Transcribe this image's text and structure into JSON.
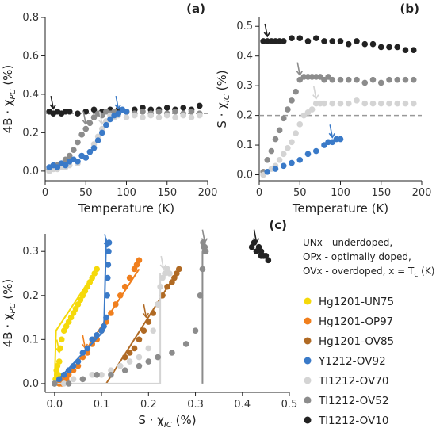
{
  "notes": [
    "UNx - underdoped,",
    "OPx - optimally doped,",
    "OVx - overdoped,  x = T",
    "c",
    " (K)"
  ],
  "chart_data": [
    {
      "panel": "(a)",
      "type": "scatter",
      "xlabel": "Temperature (K)",
      "ylabel": "4B · χ",
      "ylabel_sub": "PC",
      "ylabel_unit": " (%)",
      "xlim": [
        0,
        200
      ],
      "ylim": [
        -0.05,
        0.8
      ],
      "xticks": [
        0,
        50,
        100,
        150,
        200
      ],
      "yticks": [
        0.0,
        0.2,
        0.4,
        0.6,
        0.8
      ],
      "reference_line": 0.3,
      "series": [
        {
          "color": "#222222",
          "x": [
            5,
            10,
            15,
            20,
            25,
            30,
            40,
            50,
            60,
            70,
            80,
            90,
            100,
            110,
            120,
            130,
            140,
            150,
            160,
            170,
            180,
            190
          ],
          "y": [
            0.31,
            0.3,
            0.31,
            0.3,
            0.31,
            0.31,
            0.3,
            0.31,
            0.32,
            0.31,
            0.32,
            0.32,
            0.31,
            0.32,
            0.33,
            0.32,
            0.32,
            0.33,
            0.32,
            0.33,
            0.32,
            0.34
          ],
          "arrow_x": 10
        },
        {
          "color": "#8c8c8c",
          "x": [
            5,
            10,
            15,
            20,
            25,
            30,
            35,
            40,
            45,
            50,
            55,
            60,
            65,
            70,
            75,
            80,
            85,
            90,
            100,
            110,
            120,
            130,
            140,
            150,
            160,
            170,
            180,
            190
          ],
          "y": [
            0.01,
            0.02,
            0.03,
            0.04,
            0.06,
            0.08,
            0.11,
            0.15,
            0.19,
            0.22,
            0.25,
            0.28,
            0.3,
            0.29,
            0.31,
            0.3,
            0.31,
            0.3,
            0.31,
            0.3,
            0.31,
            0.3,
            0.31,
            0.3,
            0.31,
            0.3,
            0.31,
            0.3
          ],
          "arrow_x": 52
        },
        {
          "color": "#d4d4d4",
          "x": [
            5,
            10,
            15,
            20,
            25,
            30,
            40,
            50,
            55,
            60,
            65,
            70,
            75,
            80,
            85,
            90,
            100,
            110,
            120,
            130,
            140,
            150,
            160,
            170,
            180,
            190
          ],
          "y": [
            0.0,
            0.01,
            0.01,
            0.02,
            0.02,
            0.03,
            0.04,
            0.07,
            0.1,
            0.14,
            0.18,
            0.22,
            0.26,
            0.29,
            0.28,
            0.29,
            0.28,
            0.29,
            0.28,
            0.29,
            0.28,
            0.29,
            0.28,
            0.29,
            0.28,
            0.29
          ],
          "arrow_x": 70
        },
        {
          "color": "#3a7ac8",
          "x": [
            5,
            10,
            15,
            20,
            25,
            30,
            35,
            40,
            45,
            50,
            55,
            60,
            65,
            70,
            75,
            80,
            85,
            90,
            95,
            100
          ],
          "y": [
            0.02,
            0.03,
            0.02,
            0.04,
            0.03,
            0.05,
            0.06,
            0.05,
            0.08,
            0.07,
            0.1,
            0.12,
            0.16,
            0.2,
            0.24,
            0.27,
            0.29,
            0.3,
            0.32,
            0.31
          ],
          "arrow_x": 92
        }
      ]
    },
    {
      "panel": "(b)",
      "type": "scatter",
      "xlabel": "Temperature (K)",
      "ylabel": "S · χ",
      "ylabel_sub": "IC",
      "ylabel_unit": " (%)",
      "xlim": [
        0,
        200
      ],
      "ylim": [
        -0.02,
        0.53
      ],
      "xticks": [
        0,
        50,
        100,
        150,
        200
      ],
      "yticks": [
        0.0,
        0.1,
        0.2,
        0.3,
        0.4,
        0.5
      ],
      "reference_line": 0.2,
      "series": [
        {
          "color": "#222222",
          "x": [
            5,
            10,
            15,
            20,
            25,
            30,
            40,
            50,
            60,
            70,
            80,
            90,
            100,
            110,
            120,
            130,
            140,
            150,
            160,
            170,
            180,
            190
          ],
          "y": [
            0.45,
            0.45,
            0.45,
            0.45,
            0.45,
            0.45,
            0.46,
            0.46,
            0.45,
            0.46,
            0.45,
            0.45,
            0.45,
            0.44,
            0.45,
            0.44,
            0.44,
            0.43,
            0.43,
            0.43,
            0.42,
            0.42
          ],
          "arrow_x": 10
        },
        {
          "color": "#8c8c8c",
          "x": [
            5,
            10,
            15,
            20,
            25,
            30,
            35,
            40,
            45,
            50,
            55,
            60,
            65,
            70,
            75,
            80,
            85,
            90,
            100,
            110,
            120,
            130,
            140,
            150,
            160,
            170,
            180,
            190
          ],
          "y": [
            0.01,
            0.05,
            0.08,
            0.12,
            0.15,
            0.19,
            0.22,
            0.25,
            0.28,
            0.32,
            0.33,
            0.33,
            0.33,
            0.33,
            0.33,
            0.32,
            0.33,
            0.32,
            0.32,
            0.32,
            0.32,
            0.31,
            0.32,
            0.31,
            0.32,
            0.32,
            0.32,
            0.32
          ],
          "arrow_x": 52
        },
        {
          "color": "#d4d4d4",
          "x": [
            5,
            10,
            15,
            20,
            25,
            30,
            35,
            40,
            45,
            50,
            55,
            60,
            65,
            70,
            75,
            80,
            90,
            100,
            110,
            120,
            130,
            140,
            150,
            160,
            170,
            180,
            190
          ],
          "y": [
            0.0,
            0.01,
            0.02,
            0.03,
            0.05,
            0.07,
            0.09,
            0.11,
            0.14,
            0.17,
            0.2,
            0.21,
            0.22,
            0.24,
            0.24,
            0.24,
            0.24,
            0.24,
            0.24,
            0.25,
            0.24,
            0.24,
            0.24,
            0.24,
            0.24,
            0.24,
            0.24
          ],
          "arrow_x": 70
        },
        {
          "color": "#3a7ac8",
          "x": [
            10,
            20,
            30,
            40,
            50,
            60,
            70,
            80,
            85,
            90,
            95,
            100
          ],
          "y": [
            0.01,
            0.02,
            0.03,
            0.04,
            0.05,
            0.07,
            0.08,
            0.1,
            0.11,
            0.11,
            0.12,
            0.12
          ],
          "arrow_x": 92
        }
      ]
    },
    {
      "panel": "(c)",
      "type": "scatter",
      "xlabel": "S · χ",
      "xlabel_sub": "IC",
      "xlabel_unit": " (%)",
      "ylabel": "4B · χ",
      "ylabel_sub": "PC",
      "ylabel_unit": " (%)",
      "xlim": [
        -0.02,
        0.5
      ],
      "ylim": [
        -0.02,
        0.34
      ],
      "xticks": [
        0.0,
        0.1,
        0.2,
        0.3,
        0.4,
        0.5
      ],
      "yticks": [
        0.0,
        0.1,
        0.2,
        0.3
      ],
      "series": [
        {
          "name": "Hg1201-UN75",
          "color": "#f5d90a",
          "x": [
            0.0,
            0.005,
            0.01,
            0.012,
            0.015,
            0.02,
            0.025,
            0.03,
            0.035,
            0.04,
            0.045,
            0.05,
            0.055,
            0.06,
            0.065,
            0.07,
            0.075,
            0.08,
            0.085,
            0.09,
            0.002,
            0.004,
            0.006,
            0.008,
            0.01
          ],
          "y": [
            0.0,
            0.02,
            0.05,
            0.08,
            0.1,
            0.12,
            0.13,
            0.14,
            0.15,
            0.16,
            0.17,
            0.18,
            0.19,
            0.2,
            0.21,
            0.22,
            0.23,
            0.24,
            0.25,
            0.26,
            0.01,
            0.03,
            0.04,
            0.02,
            0.0
          ],
          "fit": [
            [
              0.0,
              0.0
            ],
            [
              0.003,
              0.12
            ],
            [
              0.09,
              0.26
            ]
          ],
          "arrow": [
            0.01,
            0.06
          ]
        },
        {
          "name": "Hg1201-OP97",
          "color": "#f07f1d",
          "x": [
            0.01,
            0.02,
            0.03,
            0.04,
            0.05,
            0.06,
            0.07,
            0.08,
            0.09,
            0.1,
            0.11,
            0.12,
            0.13,
            0.14,
            0.15,
            0.16,
            0.17,
            0.175,
            0.18,
            0.015,
            0.025
          ],
          "y": [
            0.0,
            0.01,
            0.02,
            0.03,
            0.04,
            0.06,
            0.07,
            0.09,
            0.1,
            0.12,
            0.14,
            0.16,
            0.18,
            0.2,
            0.22,
            0.24,
            0.26,
            0.27,
            0.28,
            0.0,
            0.01
          ],
          "fit": [
            [
              0.02,
              0.0
            ],
            [
              0.18,
              0.26
            ]
          ],
          "arrow": [
            0.065,
            0.07
          ]
        },
        {
          "name": "Hg1201-OV85",
          "color": "#b06a24",
          "x": [
            0.15,
            0.16,
            0.17,
            0.18,
            0.19,
            0.2,
            0.21,
            0.22,
            0.23,
            0.24,
            0.25,
            0.255,
            0.26,
            0.265
          ],
          "y": [
            0.06,
            0.07,
            0.08,
            0.1,
            0.12,
            0.14,
            0.16,
            0.18,
            0.2,
            0.22,
            0.23,
            0.24,
            0.25,
            0.26
          ],
          "fit": [
            [
              0.11,
              0.0
            ],
            [
              0.265,
              0.26
            ]
          ],
          "arrow": [
            0.195,
            0.14
          ]
        },
        {
          "name": "Y1212-OV92",
          "color": "#3a7ac8",
          "x": [
            0.0,
            0.01,
            0.02,
            0.03,
            0.04,
            0.05,
            0.06,
            0.07,
            0.08,
            0.09,
            0.1,
            0.105,
            0.11,
            0.112,
            0.113,
            0.114,
            0.115,
            0.116
          ],
          "y": [
            0.0,
            0.01,
            0.02,
            0.03,
            0.04,
            0.05,
            0.07,
            0.08,
            0.1,
            0.11,
            0.12,
            0.13,
            0.15,
            0.2,
            0.24,
            0.27,
            0.3,
            0.32
          ],
          "fit": [
            [
              0.0,
              0.0
            ],
            [
              0.105,
              0.12
            ],
            [
              0.11,
              0.33
            ]
          ],
          "arrow": [
            0.112,
            0.3
          ]
        },
        {
          "name": "Tl1212-OV70",
          "color": "#d4d4d4",
          "x": [
            0.0,
            0.02,
            0.04,
            0.06,
            0.08,
            0.1,
            0.12,
            0.14,
            0.16,
            0.18,
            0.2,
            0.21,
            0.22,
            0.225,
            0.23,
            0.235,
            0.24,
            0.245,
            0.24,
            0.235
          ],
          "y": [
            0.0,
            0.0,
            0.01,
            0.01,
            0.02,
            0.02,
            0.03,
            0.04,
            0.05,
            0.06,
            0.08,
            0.12,
            0.18,
            0.22,
            0.24,
            0.25,
            0.26,
            0.25,
            0.26,
            0.25
          ],
          "fit": [
            [
              0.0,
              0.0
            ],
            [
              0.225,
              0.0
            ],
            [
              0.225,
              0.25
            ]
          ],
          "arrow": [
            0.232,
            0.25
          ]
        },
        {
          "name": "Tl1212-OV52",
          "color": "#8c8c8c",
          "x": [
            0.0,
            0.03,
            0.06,
            0.09,
            0.12,
            0.15,
            0.18,
            0.2,
            0.22,
            0.25,
            0.28,
            0.3,
            0.31,
            0.315,
            0.32,
            0.318,
            0.322,
            0.316,
            0.32
          ],
          "y": [
            0.0,
            0.0,
            0.01,
            0.02,
            0.02,
            0.03,
            0.04,
            0.05,
            0.06,
            0.07,
            0.09,
            0.12,
            0.2,
            0.26,
            0.3,
            0.31,
            0.3,
            0.32,
            0.31
          ],
          "fit": [
            [
              0.315,
              0.0
            ],
            [
              0.315,
              0.3
            ]
          ],
          "arrow": [
            0.32,
            0.31
          ]
        },
        {
          "name": "Tl1212-OV10",
          "color": "#222222",
          "x": [
            0.42,
            0.425,
            0.43,
            0.435,
            0.44,
            0.445,
            0.45,
            0.455,
            0.43,
            0.44
          ],
          "y": [
            0.31,
            0.32,
            0.3,
            0.31,
            0.3,
            0.29,
            0.29,
            0.28,
            0.3,
            0.29
          ],
          "arrow": [
            0.43,
            0.31
          ]
        }
      ]
    }
  ]
}
